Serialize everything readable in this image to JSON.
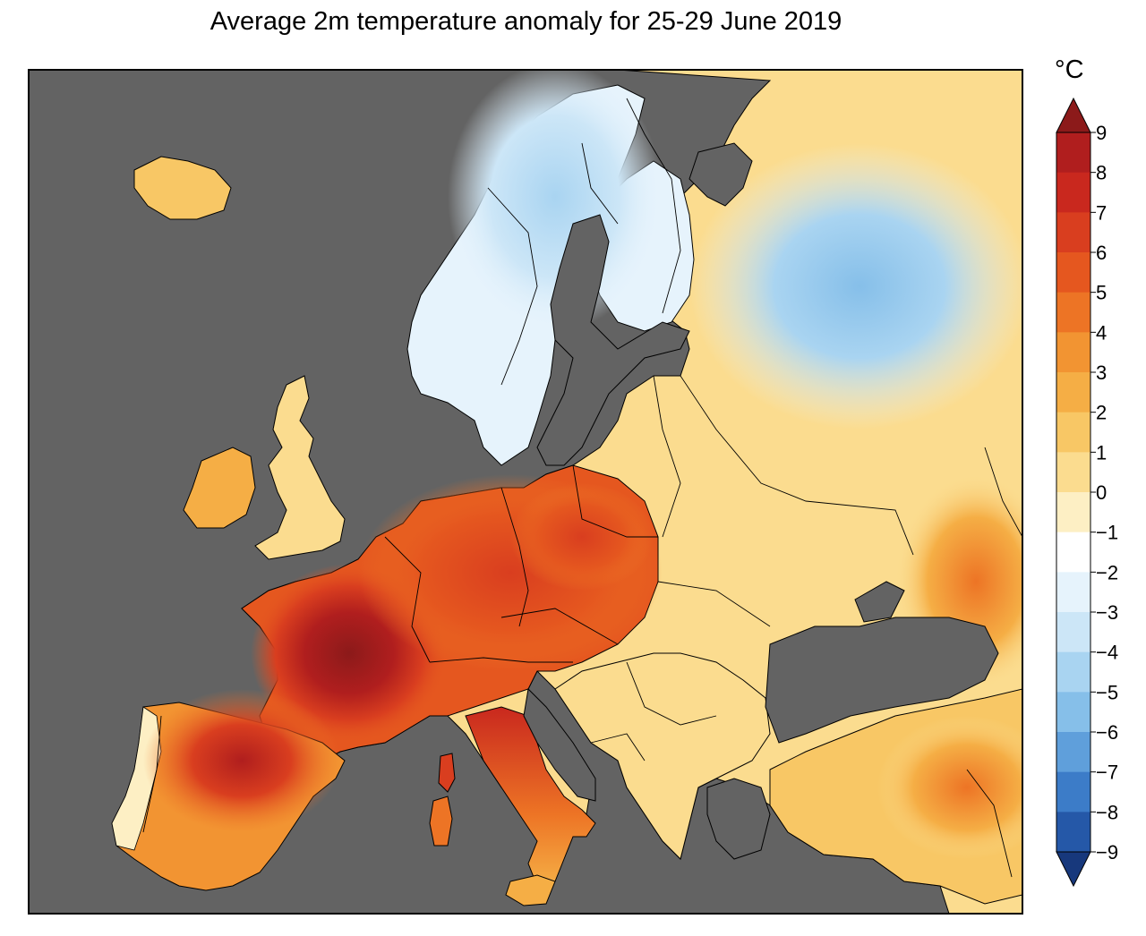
{
  "title": "Average 2m temperature anomaly for 25-29 June 2019",
  "colorbar": {
    "unit": "°C",
    "min": -9,
    "max": 9,
    "ticks": [
      9,
      8,
      7,
      6,
      5,
      4,
      3,
      2,
      1,
      0,
      -1,
      -2,
      -3,
      -4,
      -5,
      -6,
      -7,
      -8,
      -9
    ],
    "tick_labels": [
      "9",
      "8",
      "7",
      "6",
      "5",
      "4",
      "3",
      "2",
      "1",
      "0",
      "−1",
      "−2",
      "−3",
      "−4",
      "−5",
      "−6",
      "−7",
      "−8",
      "−9"
    ],
    "extend": "both",
    "colors_high_to_low": [
      "#8c1a1a",
      "#b01e1e",
      "#c9281e",
      "#d93e1f",
      "#e5571f",
      "#ed7425",
      "#f29432",
      "#f5ae45",
      "#f8c765",
      "#fbdc8f",
      "#fdefc4",
      "#ffffff",
      "#e6f3fc",
      "#cce6f7",
      "#a9d4f1",
      "#86bfe9",
      "#5f9fdb",
      "#3c7cc8",
      "#2558a8",
      "#17387c"
    ]
  },
  "colors": {
    "sea": "#636363",
    "border": "#000000",
    "frame": "#000000"
  }
}
